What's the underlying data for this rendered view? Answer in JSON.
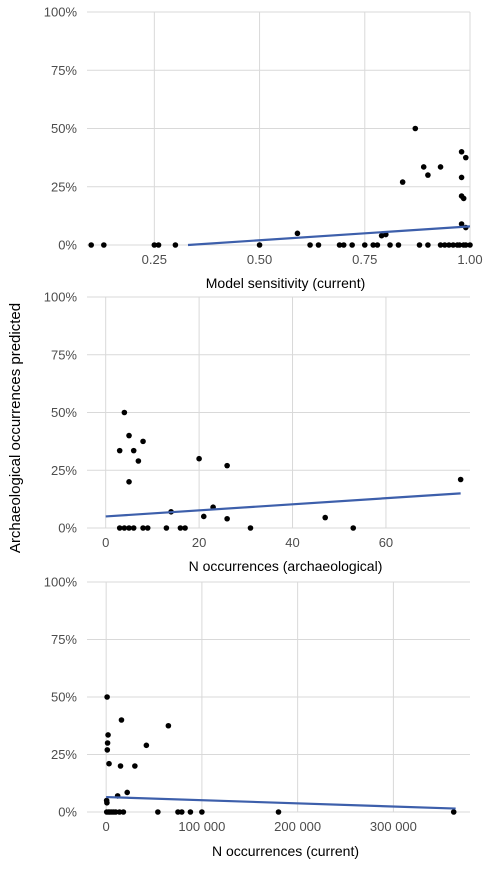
{
  "ylabel": "Archaeological occurrences predicted",
  "chart_data": [
    {
      "type": "scatter",
      "xlabel": "Model sensitivity (current)",
      "ylabel": "Archaeological occurrences predicted",
      "xlim": [
        0.09,
        1.0
      ],
      "ylim": [
        0,
        1
      ],
      "xticks": [
        0.25,
        0.5,
        0.75,
        1.0
      ],
      "xtick_labels": [
        "0.25",
        "0.50",
        "0.75",
        "1.00"
      ],
      "yticks": [
        0,
        0.25,
        0.5,
        0.75,
        1.0
      ],
      "ytick_labels": [
        "0%",
        "25%",
        "50%",
        "75%",
        "100%"
      ],
      "grid": true,
      "points": [
        {
          "x": 0.1,
          "y": 0
        },
        {
          "x": 0.13,
          "y": 0
        },
        {
          "x": 0.25,
          "y": 0
        },
        {
          "x": 0.26,
          "y": 0
        },
        {
          "x": 0.3,
          "y": 0
        },
        {
          "x": 0.5,
          "y": 0
        },
        {
          "x": 0.59,
          "y": 0.05
        },
        {
          "x": 0.62,
          "y": 0
        },
        {
          "x": 0.64,
          "y": 0
        },
        {
          "x": 0.69,
          "y": 0
        },
        {
          "x": 0.7,
          "y": 0
        },
        {
          "x": 0.72,
          "y": 0
        },
        {
          "x": 0.75,
          "y": 0
        },
        {
          "x": 0.77,
          "y": 0
        },
        {
          "x": 0.78,
          "y": 0
        },
        {
          "x": 0.79,
          "y": 0.04
        },
        {
          "x": 0.8,
          "y": 0.045
        },
        {
          "x": 0.81,
          "y": 0
        },
        {
          "x": 0.83,
          "y": 0
        },
        {
          "x": 0.84,
          "y": 0.27
        },
        {
          "x": 0.87,
          "y": 0.5
        },
        {
          "x": 0.88,
          "y": 0
        },
        {
          "x": 0.89,
          "y": 0.335
        },
        {
          "x": 0.9,
          "y": 0.3
        },
        {
          "x": 0.9,
          "y": 0
        },
        {
          "x": 0.93,
          "y": 0.335
        },
        {
          "x": 0.93,
          "y": 0
        },
        {
          "x": 0.94,
          "y": 0
        },
        {
          "x": 0.95,
          "y": 0
        },
        {
          "x": 0.96,
          "y": 0
        },
        {
          "x": 0.97,
          "y": 0
        },
        {
          "x": 0.975,
          "y": 0
        },
        {
          "x": 0.98,
          "y": 0.4
        },
        {
          "x": 0.98,
          "y": 0.29
        },
        {
          "x": 0.98,
          "y": 0.21
        },
        {
          "x": 0.985,
          "y": 0.2
        },
        {
          "x": 0.99,
          "y": 0.375
        },
        {
          "x": 0.98,
          "y": 0.09
        },
        {
          "x": 0.99,
          "y": 0.075
        },
        {
          "x": 0.985,
          "y": 0
        },
        {
          "x": 0.99,
          "y": 0
        },
        {
          "x": 1.0,
          "y": 0
        }
      ],
      "trend": {
        "x": [
          0.33,
          1.0
        ],
        "y": [
          0.0,
          0.08
        ]
      }
    },
    {
      "type": "scatter",
      "xlabel": "N occurrences (archaeological)",
      "ylabel": "Archaeological occurrences predicted",
      "xlim": [
        -4,
        78
      ],
      "ylim": [
        0,
        1
      ],
      "xticks": [
        0,
        20,
        40,
        60
      ],
      "xtick_labels": [
        "0",
        "20",
        "40",
        "60"
      ],
      "yticks": [
        0,
        0.25,
        0.5,
        0.75,
        1.0
      ],
      "ytick_labels": [
        "0%",
        "25%",
        "50%",
        "75%",
        "100%"
      ],
      "grid": true,
      "points": [
        {
          "x": 3,
          "y": 0.335
        },
        {
          "x": 3,
          "y": 0
        },
        {
          "x": 4,
          "y": 0.5
        },
        {
          "x": 4,
          "y": 0
        },
        {
          "x": 5,
          "y": 0.4
        },
        {
          "x": 5,
          "y": 0.2
        },
        {
          "x": 5,
          "y": 0
        },
        {
          "x": 6,
          "y": 0.335
        },
        {
          "x": 6,
          "y": 0
        },
        {
          "x": 7,
          "y": 0.29
        },
        {
          "x": 8,
          "y": 0.375
        },
        {
          "x": 8,
          "y": 0
        },
        {
          "x": 9,
          "y": 0
        },
        {
          "x": 13,
          "y": 0
        },
        {
          "x": 14,
          "y": 0.07
        },
        {
          "x": 16,
          "y": 0
        },
        {
          "x": 17,
          "y": 0
        },
        {
          "x": 20,
          "y": 0.3
        },
        {
          "x": 21,
          "y": 0.05
        },
        {
          "x": 23,
          "y": 0.09
        },
        {
          "x": 26,
          "y": 0.27
        },
        {
          "x": 26,
          "y": 0.04
        },
        {
          "x": 31,
          "y": 0
        },
        {
          "x": 47,
          "y": 0.045
        },
        {
          "x": 53,
          "y": 0
        },
        {
          "x": 76,
          "y": 0.21
        }
      ],
      "trend": {
        "x": [
          0,
          76
        ],
        "y": [
          0.05,
          0.15
        ]
      }
    },
    {
      "type": "scatter",
      "xlabel": "N occurrences (current)",
      "ylabel": "Archaeological occurrences predicted",
      "xlim": [
        -20000,
        380000
      ],
      "ylim": [
        0,
        1
      ],
      "xticks": [
        0,
        100000,
        200000,
        300000
      ],
      "xtick_labels": [
        "0",
        "100 000",
        "200 000",
        "300 000"
      ],
      "yticks": [
        0,
        0.25,
        0.5,
        0.75,
        1.0
      ],
      "ytick_labels": [
        "0%",
        "25%",
        "50%",
        "75%",
        "100%"
      ],
      "grid": true,
      "points": [
        {
          "x": 1000,
          "y": 0.5
        },
        {
          "x": 2000,
          "y": 0.335
        },
        {
          "x": 1500,
          "y": 0.3
        },
        {
          "x": 1200,
          "y": 0.27
        },
        {
          "x": 3000,
          "y": 0.21
        },
        {
          "x": 500,
          "y": 0.05
        },
        {
          "x": 800,
          "y": 0.04
        },
        {
          "x": 600,
          "y": 0
        },
        {
          "x": 2500,
          "y": 0
        },
        {
          "x": 4000,
          "y": 0
        },
        {
          "x": 6000,
          "y": 0
        },
        {
          "x": 8000,
          "y": 0
        },
        {
          "x": 10000,
          "y": 0
        },
        {
          "x": 12000,
          "y": 0.07
        },
        {
          "x": 14000,
          "y": 0
        },
        {
          "x": 15000,
          "y": 0.2
        },
        {
          "x": 16000,
          "y": 0.4
        },
        {
          "x": 18000,
          "y": 0
        },
        {
          "x": 22000,
          "y": 0.085
        },
        {
          "x": 30000,
          "y": 0.2
        },
        {
          "x": 42000,
          "y": 0.29
        },
        {
          "x": 54000,
          "y": 0
        },
        {
          "x": 65000,
          "y": 0.375
        },
        {
          "x": 75000,
          "y": 0
        },
        {
          "x": 79000,
          "y": 0
        },
        {
          "x": 88000,
          "y": 0
        },
        {
          "x": 100000,
          "y": 0
        },
        {
          "x": 180000,
          "y": 0
        },
        {
          "x": 363000,
          "y": 0
        }
      ],
      "trend": {
        "x": [
          0,
          365000
        ],
        "y": [
          0.065,
          0.015
        ]
      }
    }
  ],
  "colors": {
    "points": "#000000",
    "trend": "#3d5fab",
    "grid": "#d9d9d9",
    "tick_text": "#4d4d4d"
  }
}
